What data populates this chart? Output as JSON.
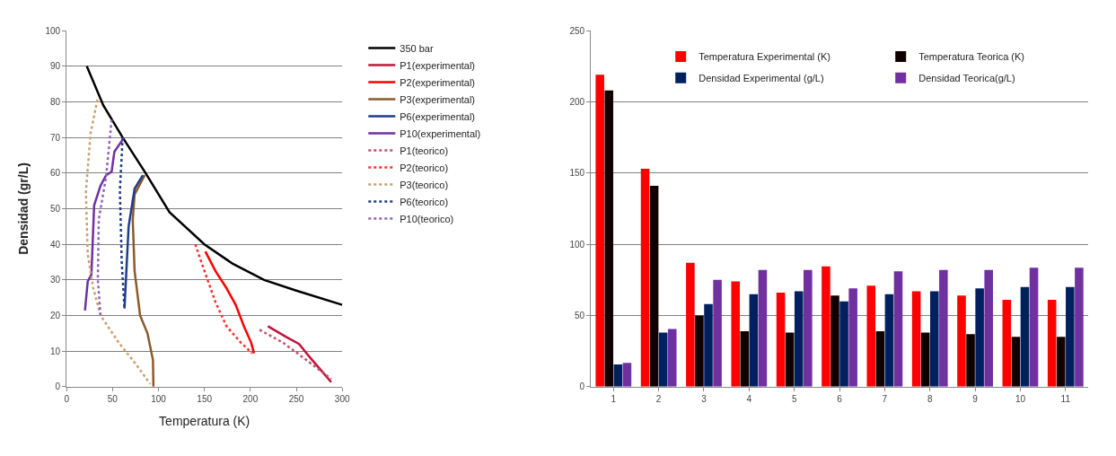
{
  "chart_data": [
    {
      "type": "line",
      "xlabel": "Temperatura (K)",
      "ylabel": "Densidad (gr/L)",
      "xlim": [
        0,
        300
      ],
      "ylim": [
        0,
        100
      ],
      "xticks": [
        0,
        50,
        100,
        150,
        200,
        250,
        300
      ],
      "yticks": [
        0,
        10,
        20,
        30,
        40,
        50,
        60,
        70,
        80,
        90,
        100
      ],
      "grid": "y",
      "legend": "right",
      "series": [
        {
          "name": "350 bar",
          "color": "#000000",
          "line_style": "solid",
          "x": [
            22,
            40,
            61,
            86,
            112,
            150,
            181,
            215,
            250,
            300
          ],
          "values": [
            90,
            79,
            70,
            60,
            49,
            40,
            34.5,
            30,
            27,
            23
          ]
        },
        {
          "name": "P1(experimental)",
          "color": "#c0143c",
          "line_style": "solid",
          "x": [
            219,
            239,
            253,
            264,
            277,
            288
          ],
          "values": [
            17,
            14,
            12,
            8.5,
            4.6,
            1.3
          ]
        },
        {
          "name": "P2(experimental)",
          "color": "#ff0000",
          "line_style": "solid",
          "x": [
            151,
            162,
            174,
            184,
            193,
            201,
            204
          ],
          "values": [
            38,
            32.5,
            27.7,
            23,
            17,
            12.3,
            9.4
          ]
        },
        {
          "name": "P3(experimental)",
          "color": "#8b5a2b",
          "line_style": "solid",
          "x": [
            85,
            74,
            72,
            74,
            80,
            88,
            94,
            94.5
          ],
          "values": [
            59.4,
            54,
            47,
            32.5,
            20,
            15,
            7.5,
            0
          ]
        },
        {
          "name": "P6(experimental)",
          "color": "#1f3c88",
          "line_style": "solid",
          "x": [
            83,
            74,
            67.5,
            63
          ],
          "values": [
            59.4,
            55.6,
            45,
            22
          ]
        },
        {
          "name": "P10(experimental)",
          "color": "#7030a0",
          "line_style": "solid",
          "x": [
            62,
            60,
            52,
            49,
            43,
            37,
            30,
            27,
            23,
            20
          ],
          "values": [
            70,
            69,
            66,
            60.4,
            59.4,
            56.5,
            51,
            31.5,
            29.6,
            21.4
          ]
        },
        {
          "name": "P1(teorico)",
          "color": "#c0506e",
          "line_style": "dotted",
          "x": [
            210,
            236,
            261,
            288
          ],
          "values": [
            16,
            12.3,
            7.5,
            2.2
          ]
        },
        {
          "name": "P2(teorico)",
          "color": "#ff3030",
          "line_style": "dotted",
          "x": [
            140,
            150,
            162,
            174,
            190,
            202
          ],
          "values": [
            40,
            32.5,
            23.8,
            17,
            12.3,
            9.4
          ]
        },
        {
          "name": "P3(teorico)",
          "color": "#c8a070",
          "line_style": "dotted",
          "x": [
            33.5,
            26,
            21,
            23,
            29,
            37,
            57,
            75,
            91
          ],
          "values": [
            80.6,
            71,
            54.6,
            37.3,
            27.7,
            20,
            12.3,
            6.5,
            0.8
          ]
        },
        {
          "name": "P6(teorico)",
          "color": "#1f3c88",
          "line_style": "dotted",
          "x": [
            61,
            58,
            60,
            63
          ],
          "values": [
            70,
            55,
            35,
            22
          ]
        },
        {
          "name": "P10(teorico)",
          "color": "#9060c0",
          "line_style": "dotted",
          "x": [
            49,
            43,
            35,
            34,
            37
          ],
          "values": [
            75,
            59,
            47,
            30,
            20
          ]
        }
      ]
    },
    {
      "type": "bar",
      "categories": [
        "1",
        "2",
        "3",
        "4",
        "5",
        "6",
        "7",
        "8",
        "9",
        "10",
        "11"
      ],
      "ylim": [
        0,
        250
      ],
      "yticks": [
        0,
        50,
        100,
        150,
        200,
        250
      ],
      "grid": "y",
      "legend": "top",
      "series": [
        {
          "name": "Temperatura Experimental (K)",
          "color": "#ff0000",
          "values": [
            219,
            153,
            87,
            74,
            66,
            84.5,
            71,
            67,
            64,
            61,
            61
          ]
        },
        {
          "name": "Temperatura Teorica (K)",
          "color": "#100000",
          "values": [
            208,
            141,
            50,
            39,
            38,
            64,
            39,
            38,
            37,
            35,
            35
          ]
        },
        {
          "name": "Densidad Experimental (g/L)",
          "color": "#002060",
          "values": [
            15.7,
            38,
            58,
            65,
            67,
            60,
            65,
            67,
            69,
            70,
            70
          ]
        },
        {
          "name": "Densidad Teorica(g/L)",
          "color": "#7030a0",
          "values": [
            16.7,
            40.6,
            75,
            82,
            82,
            69,
            81,
            82,
            82,
            83.5,
            83.5
          ]
        }
      ]
    }
  ]
}
